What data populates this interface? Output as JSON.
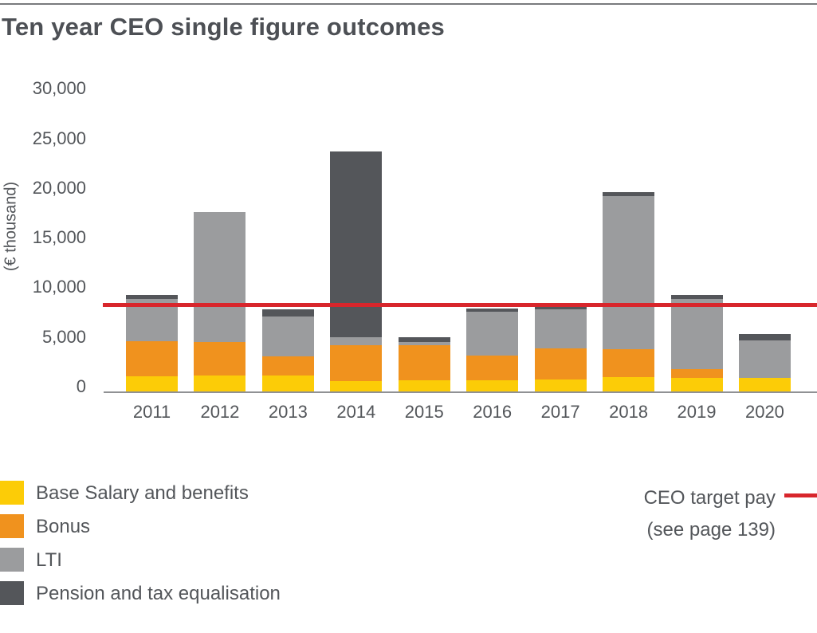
{
  "header": {
    "title": "Ten year CEO single figure outcomes"
  },
  "chart_data": {
    "type": "bar",
    "stacked": true,
    "title": "Ten year CEO single figure outcomes",
    "ylabel": "(€ thousand)",
    "xlabel": "",
    "ylim": [
      0,
      30000
    ],
    "grid": false,
    "legend_position": "bottom-left",
    "categories": [
      "2011",
      "2012",
      "2013",
      "2014",
      "2015",
      "2016",
      "2017",
      "2018",
      "2019",
      "2020"
    ],
    "series": [
      {
        "name": "Base Salary and benefits",
        "color": "#FCCC07",
        "values": [
          1700,
          1800,
          1800,
          1200,
          1300,
          1300,
          1400,
          1600,
          1500,
          1500
        ]
      },
      {
        "name": "Bonus",
        "color": "#F0921E",
        "values": [
          3500,
          3300,
          1900,
          3600,
          3500,
          2500,
          3100,
          2800,
          900,
          0
        ]
      },
      {
        "name": "LTI",
        "color": "#9B9C9E",
        "values": [
          4300,
          13100,
          4000,
          800,
          300,
          4400,
          3900,
          15400,
          7100,
          3800
        ]
      },
      {
        "name": "Pension and tax equalisation",
        "color": "#54565A",
        "values": [
          400,
          0,
          700,
          18700,
          500,
          300,
          300,
          400,
          400,
          600
        ]
      }
    ],
    "totals": [
      9900,
      18200,
      8400,
      24300,
      5600,
      8500,
      8700,
      20200,
      9900,
      5900
    ],
    "yticks": [
      {
        "v": 0,
        "label": "0"
      },
      {
        "v": 5000,
        "label": "5,000"
      },
      {
        "v": 10000,
        "label": "10,000"
      },
      {
        "v": 15000,
        "label": "15,000"
      },
      {
        "v": 20000,
        "label": "20,000"
      },
      {
        "v": 25000,
        "label": "25,000"
      },
      {
        "v": 30000,
        "label": "30,000"
      }
    ],
    "target_line": {
      "label": "CEO target pay",
      "sublabel": "(see page 139)",
      "value": 8900,
      "color": "#D8262C"
    }
  },
  "colors": {
    "accent_red": "#D8262C",
    "text": "#53565A",
    "axis": "#909194"
  }
}
